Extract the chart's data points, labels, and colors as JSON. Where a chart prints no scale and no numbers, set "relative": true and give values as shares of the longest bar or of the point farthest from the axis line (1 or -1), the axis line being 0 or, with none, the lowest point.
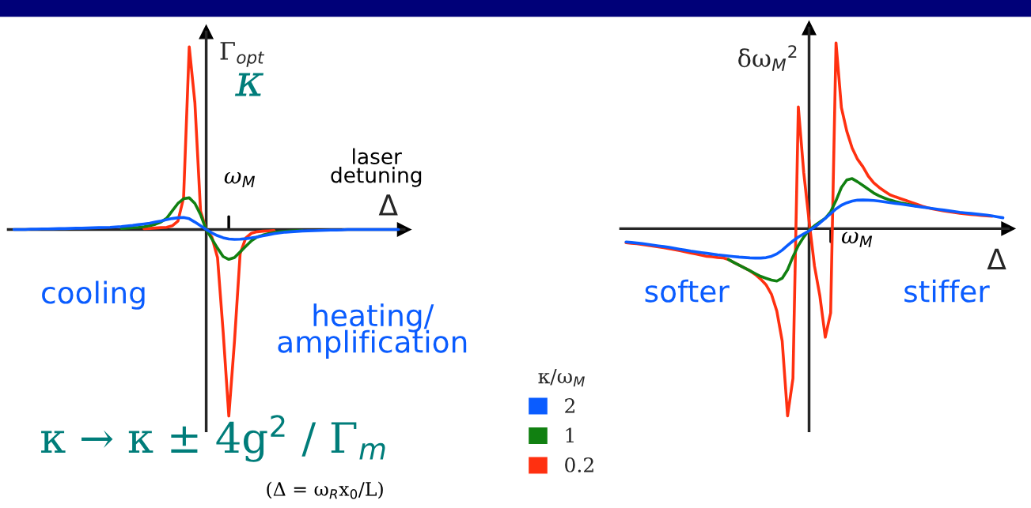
{
  "chart_data": [
    {
      "type": "line",
      "relative": true,
      "ylabel": "Γ$_{opt}$",
      "xlabel": "Δ",
      "legend_title": "κ/ω$_{M}$",
      "legend": "bottom right",
      "categories": [
        null,
        null,
        null,
        null,
        null,
        null,
        null,
        null,
        null,
        null,
        null,
        null,
        null,
        null,
        null,
        null,
        null,
        null,
        null,
        null,
        null,
        null,
        null,
        null,
        null,
        null,
        null,
        null,
        null,
        null,
        null,
        null,
        null,
        null,
        null,
        null,
        null,
        null,
        null,
        null,
        null,
        null,
        null,
        null,
        null,
        null,
        null,
        null,
        null,
        null,
        null,
        null,
        null,
        null,
        null,
        null,
        null,
        null,
        null,
        null,
        null,
        null,
        null,
        null,
        null,
        null,
        null,
        null,
        null
      ],
      "annotations": [
        "ω$_{M}$",
        "κ",
        "laser\ndetuning",
        "cooling",
        "heating/\namplification",
        "κ → κ ± 4g$^{2}$ / Γ$_{m}$",
        "(Δ = ω$_{R}$x$_{0}$/L)"
      ],
      "series": [
        {
          "name": "2",
          "color": "#0a5cff",
          "values": [
            0,
            0,
            0,
            0.002,
            0.002,
            0.003,
            0.003,
            0.004,
            0.005,
            0.005,
            0.006,
            0.007,
            0.007,
            0.008,
            0.009,
            0.01,
            0.011,
            0.012,
            0.014,
            0.016,
            0.019,
            0.022,
            0.026,
            0.03,
            0.034,
            0.04,
            0.046,
            0.053,
            0.059,
            0.063,
            0.065,
            0.058,
            0.04,
            0.02,
            0,
            -0.018,
            -0.033,
            -0.044,
            -0.051,
            -0.053,
            -0.052,
            -0.049,
            -0.045,
            -0.04,
            -0.034,
            -0.028,
            -0.022,
            -0.018,
            -0.014,
            -0.012,
            -0.01,
            -0.008,
            -0.007,
            -0.006,
            -0.005,
            -0.004,
            -0.003,
            -0.003,
            -0.002,
            0,
            0,
            0,
            0,
            0,
            0,
            0,
            0,
            0,
            0
          ]
        },
        {
          "name": "1",
          "color": "#118011",
          "values": [
            null,
            null,
            null,
            null,
            null,
            null,
            null,
            null,
            null,
            null,
            null,
            null,
            null,
            null,
            null,
            null,
            null,
            null,
            null,
            0.006,
            0.008,
            0.01,
            0.012,
            0.015,
            0.02,
            0.028,
            0.04,
            0.06,
            0.1,
            0.14,
            0.165,
            0.17,
            0.14,
            0.08,
            0,
            -0.05,
            -0.1,
            -0.145,
            -0.16,
            -0.15,
            -0.12,
            -0.09,
            -0.06,
            -0.04,
            -0.03,
            -0.022,
            -0.016,
            -0.012,
            -0.01,
            -0.008,
            -0.007,
            -0.006,
            null,
            null,
            null,
            null,
            null,
            null,
            null,
            null,
            null,
            null,
            null,
            null,
            null,
            null,
            null,
            null,
            null
          ]
        },
        {
          "name": "0.2",
          "color": "#ff3010",
          "values": [
            null,
            null,
            null,
            null,
            null,
            null,
            null,
            null,
            null,
            null,
            null,
            null,
            null,
            null,
            null,
            null,
            null,
            null,
            null,
            null,
            null,
            null,
            null,
            0.005,
            0.006,
            0.008,
            0.01,
            0.012,
            0.02,
            0.045,
            0.17,
            0.98,
            0.68,
            0.1,
            0,
            -0.04,
            -0.15,
            -0.55,
            -1,
            -0.6,
            -0.13,
            -0.045,
            -0.02,
            -0.012,
            -0.009,
            -0.007,
            -0.005,
            null,
            null,
            null,
            null,
            null,
            null,
            null,
            null,
            null,
            null,
            null,
            null,
            null,
            null,
            null,
            null,
            null,
            null,
            null,
            null,
            null,
            null
          ]
        }
      ]
    },
    {
      "type": "line",
      "relative": true,
      "ylabel": "δω$_{M}$$^{2}$",
      "xlabel": "Δ",
      "categories": [
        null,
        null,
        null,
        null,
        null,
        null,
        null,
        null,
        null,
        null,
        null,
        null,
        null,
        null,
        null,
        null,
        null,
        null,
        null,
        null,
        null,
        null,
        null,
        null,
        null,
        null,
        null,
        null,
        null,
        null,
        null,
        null,
        null,
        null,
        null,
        null,
        null,
        null,
        null,
        null,
        null,
        null,
        null,
        null,
        null,
        null,
        null,
        null,
        null,
        null,
        null,
        null,
        null,
        null,
        null,
        null,
        null,
        null,
        null,
        null,
        null,
        null,
        null,
        null,
        null,
        null,
        null,
        null,
        null,
        null,
        null
      ],
      "annotations": [
        "ω$_{M}$",
        "softer",
        "stiffer"
      ],
      "series": [
        {
          "color": "#0a5cff",
          "values": [
            -0.071,
            -0.074,
            -0.077,
            -0.08,
            -0.084,
            -0.088,
            -0.092,
            -0.096,
            -0.1,
            -0.105,
            -0.11,
            -0.115,
            -0.12,
            -0.124,
            -0.128,
            -0.132,
            -0.136,
            -0.14,
            -0.143,
            -0.146,
            -0.149,
            -0.152,
            -0.154,
            -0.156,
            -0.157,
            -0.157,
            -0.155,
            -0.148,
            -0.135,
            -0.115,
            -0.09,
            -0.066,
            -0.045,
            -0.028,
            -0.012,
            0.008,
            0.03,
            0.055,
            0.08,
            0.105,
            0.125,
            0.138,
            0.147,
            0.152,
            0.153,
            0.152,
            0.15,
            0.147,
            0.143,
            0.139,
            0.135,
            0.131,
            0.127,
            0.123,
            0.119,
            0.115,
            0.111,
            0.107,
            0.103,
            0.099,
            0.095,
            0.091,
            0.087,
            0.084,
            0.081,
            0.078,
            0.075,
            0.072,
            0.068,
            0.063,
            0.058
          ]
        },
        {
          "color": "#118011",
          "values": [
            null,
            null,
            null,
            null,
            null,
            null,
            null,
            null,
            null,
            null,
            null,
            null,
            null,
            null,
            null,
            null,
            null,
            null,
            null,
            -0.165,
            -0.18,
            -0.195,
            -0.21,
            -0.225,
            -0.24,
            -0.255,
            -0.265,
            -0.275,
            -0.28,
            -0.265,
            -0.22,
            -0.15,
            -0.09,
            -0.045,
            -0.008,
            0.015,
            0.035,
            0.055,
            0.09,
            0.15,
            0.22,
            0.26,
            0.267,
            0.25,
            0.23,
            0.21,
            0.19,
            0.175,
            0.163,
            0.153,
            0.145,
            0.138,
            0.132,
            0.126,
            0.12,
            null,
            null,
            null,
            null,
            null,
            null,
            null,
            null,
            null,
            null,
            null,
            null,
            null,
            null,
            null,
            null
          ]
        },
        {
          "color": "#ff3010",
          "values": [
            -0.075,
            -0.078,
            -0.081,
            -0.085,
            -0.089,
            -0.093,
            -0.097,
            -0.102,
            -0.107,
            -0.112,
            -0.118,
            -0.124,
            -0.13,
            -0.136,
            -0.142,
            -0.148,
            -0.15,
            -0.154,
            -0.156,
            -0.165,
            -0.18,
            -0.195,
            -0.21,
            -0.225,
            -0.245,
            -0.27,
            -0.3,
            -0.35,
            -0.44,
            -0.6,
            -1,
            -0.8,
            0.65,
            0.3,
            0.04,
            -0.2,
            -0.36,
            -0.58,
            -0.45,
            0.992,
            0.646,
            0.52,
            0.43,
            0.37,
            0.33,
            0.28,
            0.245,
            0.22,
            0.2,
            0.181,
            0.17,
            0.16,
            0.15,
            0.14,
            0.13,
            0.12,
            0.111,
            0.105,
            0.1,
            0.095,
            0.09,
            0.086,
            0.082,
            0.079,
            0.076,
            0.073,
            0.07,
            0.068,
            0.066,
            null,
            null
          ]
        }
      ]
    }
  ]
}
